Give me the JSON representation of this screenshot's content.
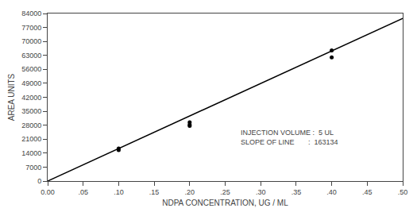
{
  "chart_data": {
    "type": "scatter",
    "xlabel": "NDPA CONCENTRATION, UG / ML",
    "ylabel": "AREA UNITS",
    "annotation": "INJECTION VOLUME :  5 UL\nSLOPE OF LINE       :  163134",
    "series": [
      {
        "type": "line",
        "color": "#000000",
        "x": [
          0.0,
          0.5
        ],
        "values": [
          0,
          81567
        ]
      },
      {
        "type": "scatter",
        "marker": "dot",
        "color": "#000000",
        "x": [
          0.1,
          0.1,
          0.2,
          0.2,
          0.2,
          0.4,
          0.4
        ],
        "values": [
          16300,
          15500,
          29500,
          28300,
          27700,
          65500,
          62000
        ]
      }
    ],
    "xlim": [
      0.0,
      0.5
    ],
    "ylim": [
      0,
      84000
    ],
    "xticks": [
      {
        "value": 0,
        "label": "0.00"
      },
      {
        "value": 0.05,
        "label": ".05"
      },
      {
        "value": 0.1,
        "label": ".10"
      },
      {
        "value": 0.15,
        "label": ".15"
      },
      {
        "value": 0.2,
        "label": ".20"
      },
      {
        "value": 0.25,
        "label": ".25"
      },
      {
        "value": 0.3,
        "label": ".30"
      },
      {
        "value": 0.35,
        "label": ".35"
      },
      {
        "value": 0.4,
        "label": ".40"
      },
      {
        "value": 0.45,
        "label": ".45"
      },
      {
        "value": 0.5,
        "label": ".50"
      }
    ],
    "yticks": [
      0,
      7000,
      14000,
      21000,
      28000,
      35000,
      42000,
      49000,
      56000,
      63000,
      70000,
      77000,
      84000
    ],
    "grid": false
  }
}
